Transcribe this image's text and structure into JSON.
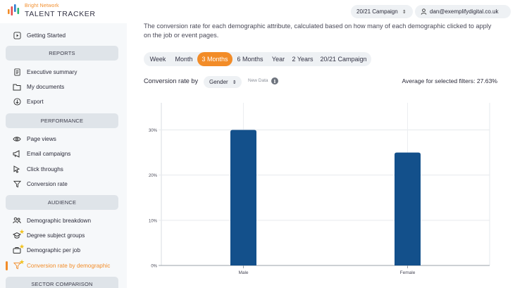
{
  "header": {
    "brand_small": "Bright Network",
    "brand_big": "TALENT TRACKER",
    "campaign_select": "20/21 Campaign",
    "user_email": "dan@exemplifydigital.co.uk"
  },
  "sidebar": {
    "getting_started": "Getting Started",
    "sections": {
      "reports": "REPORTS",
      "performance": "PERFORMANCE",
      "audience": "AUDIENCE",
      "sector": "SECTOR COMPARISON"
    },
    "items": {
      "executive_summary": "Executive summary",
      "my_documents": "My documents",
      "export": "Export",
      "page_views": "Page views",
      "email_campaigns": "Email campaigns",
      "click_throughs": "Click throughs",
      "conversion_rate": "Conversion rate",
      "demographic_breakdown": "Demographic breakdown",
      "degree_subject_groups": "Degree subject groups",
      "demographic_per_job": "Demographic per job",
      "conversion_rate_by_demographic": "Conversion rate by demographic"
    }
  },
  "main": {
    "description": "The conversion rate for each demographic attribute, calculated based on how many of each demographic clicked to apply on the job or event pages.",
    "periods": [
      "Week",
      "Month",
      "3 Months",
      "6 Months",
      "Year",
      "2 Years",
      "20/21 Campaign"
    ],
    "active_period": "3 Months",
    "conversion_label": "Conversion rate by",
    "demographic_select": "Gender",
    "new_data_label": "New Data",
    "average_text": "Average for selected filters: 27.63%"
  },
  "colors": {
    "accent": "#f28c28",
    "bar": "#13508b",
    "sidebar_bg": "#f6f8fa",
    "section_bg": "#dfe4e9"
  },
  "chart_data": {
    "type": "bar",
    "categories": [
      "Male",
      "Female"
    ],
    "values": [
      30,
      25
    ],
    "ylim": [
      0,
      36
    ],
    "yticks": [
      0,
      10,
      20,
      30
    ],
    "ytick_labels": [
      "0%",
      "10%",
      "20%",
      "30%"
    ],
    "grid": true,
    "xlabel": "",
    "ylabel": ""
  }
}
